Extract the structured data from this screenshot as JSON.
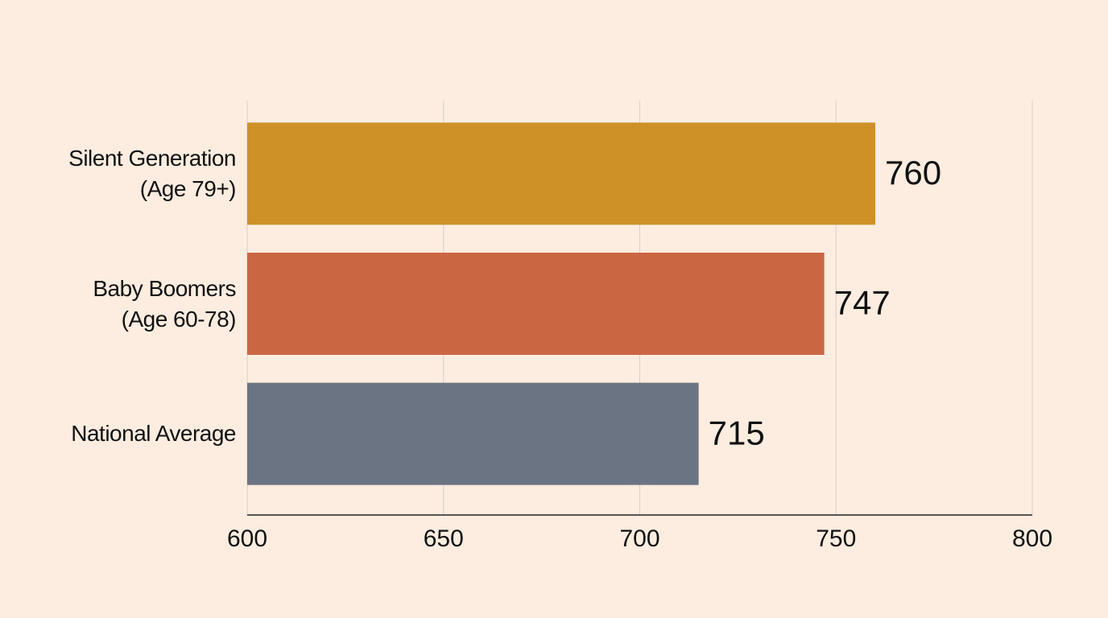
{
  "chart_data": {
    "type": "hbar",
    "categories": [
      "Silent Generation\n(Age 79+)",
      "Baby Boomers\n(Age 60-78)",
      "National Average"
    ],
    "values": [
      760,
      747,
      715
    ],
    "colors": [
      "#cd9128",
      "#cb6643",
      "#6b7482"
    ],
    "xlim": [
      600,
      800
    ],
    "xticks": [
      600,
      650,
      700,
      750,
      800
    ],
    "grid": true
  }
}
